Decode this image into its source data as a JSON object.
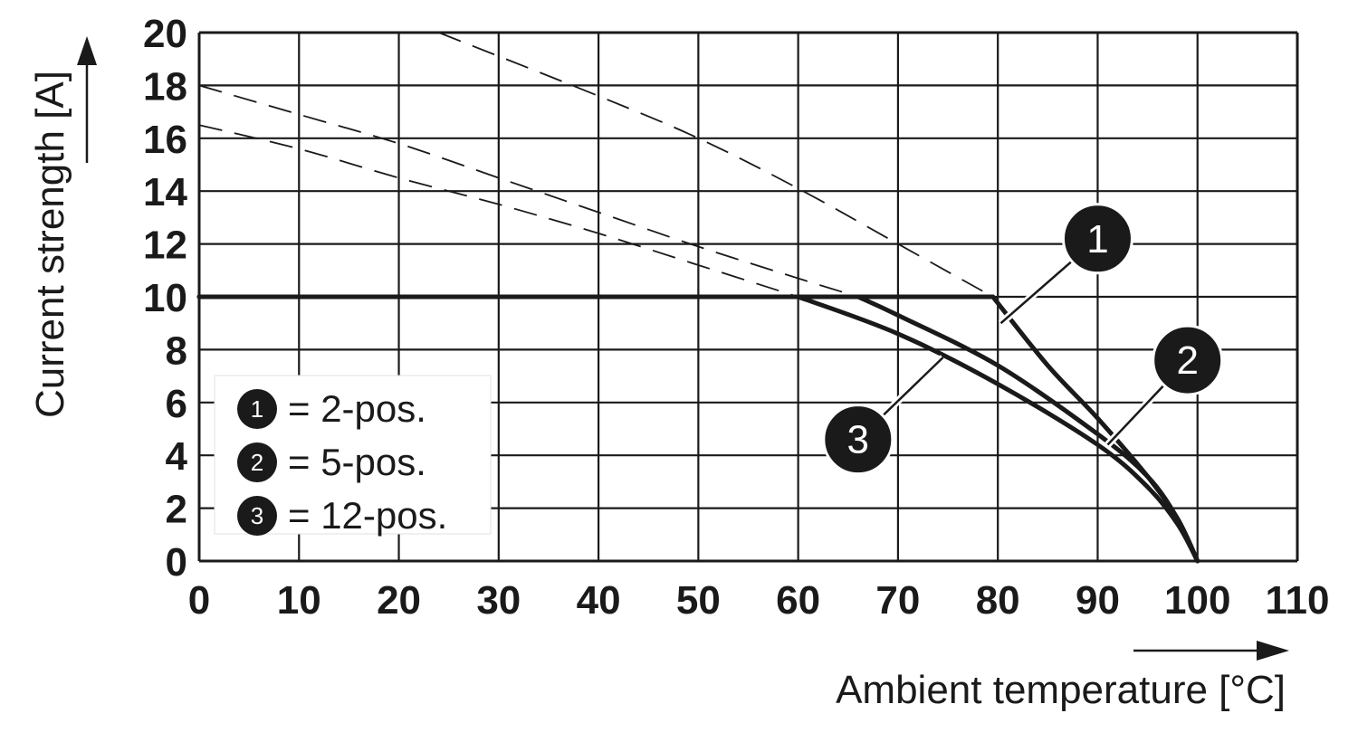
{
  "chart_data": {
    "type": "line",
    "xlabel": "Ambient temperature [°C]",
    "ylabel": "Current strength [A]",
    "xlim": [
      0,
      110
    ],
    "ylim": [
      0,
      20
    ],
    "x_ticks": [
      "0",
      "10",
      "20",
      "30",
      "40",
      "50",
      "60",
      "70",
      "80",
      "90",
      "100",
      "110"
    ],
    "y_ticks": [
      "0",
      "2",
      "4",
      "6",
      "8",
      "10",
      "12",
      "14",
      "16",
      "18",
      "20"
    ],
    "grid": true,
    "legend_position": "bottom-left",
    "legend": [
      {
        "badge": "1",
        "label": "= 2-pos."
      },
      {
        "badge": "2",
        "label": "= 5-pos."
      },
      {
        "badge": "3",
        "label": "= 12-pos."
      }
    ],
    "max_current": 10,
    "series": [
      {
        "badge": "1",
        "points": [
          [
            0,
            10
          ],
          [
            79.5,
            10
          ],
          [
            85,
            7.4
          ],
          [
            90,
            5.4
          ],
          [
            95,
            3.2
          ],
          [
            98,
            1.6
          ],
          [
            100,
            0
          ]
        ],
        "dashed_extension": [
          [
            24,
            20
          ],
          [
            40,
            17.6
          ],
          [
            50,
            16.0
          ],
          [
            60,
            14.1
          ],
          [
            70,
            12.0
          ],
          [
            79.5,
            10
          ]
        ]
      },
      {
        "badge": "2",
        "points": [
          [
            0,
            10
          ],
          [
            66,
            10
          ],
          [
            70,
            9.3
          ],
          [
            80,
            7.4
          ],
          [
            90,
            4.8
          ],
          [
            95,
            3.2
          ],
          [
            98,
            1.6
          ],
          [
            100,
            0
          ]
        ],
        "dashed_extension": [
          [
            0,
            18.0
          ],
          [
            10,
            16.9
          ],
          [
            20,
            15.8
          ],
          [
            30,
            14.5
          ],
          [
            40,
            13.2
          ],
          [
            50,
            11.9
          ],
          [
            60,
            10.7
          ],
          [
            66,
            10
          ]
        ]
      },
      {
        "badge": "3",
        "points": [
          [
            0,
            10
          ],
          [
            60,
            10
          ],
          [
            70,
            8.6
          ],
          [
            80,
            6.7
          ],
          [
            90,
            4.4
          ],
          [
            95,
            2.8
          ],
          [
            98,
            1.4
          ],
          [
            100,
            0
          ]
        ],
        "dashed_extension": [
          [
            0,
            16.5
          ],
          [
            10,
            15.6
          ],
          [
            20,
            14.5
          ],
          [
            30,
            13.5
          ],
          [
            40,
            12.4
          ],
          [
            50,
            11.2
          ],
          [
            60,
            10
          ]
        ]
      }
    ],
    "annotations": [
      {
        "badge": "1",
        "at": [
          80.3,
          9.0
        ],
        "label_pos": [
          90,
          12.2
        ]
      },
      {
        "badge": "2",
        "at": [
          91.0,
          4.4
        ],
        "label_pos": [
          99,
          7.6
        ]
      },
      {
        "badge": "3",
        "at": [
          74.5,
          7.7
        ],
        "label_pos": [
          66,
          4.6
        ]
      }
    ]
  }
}
